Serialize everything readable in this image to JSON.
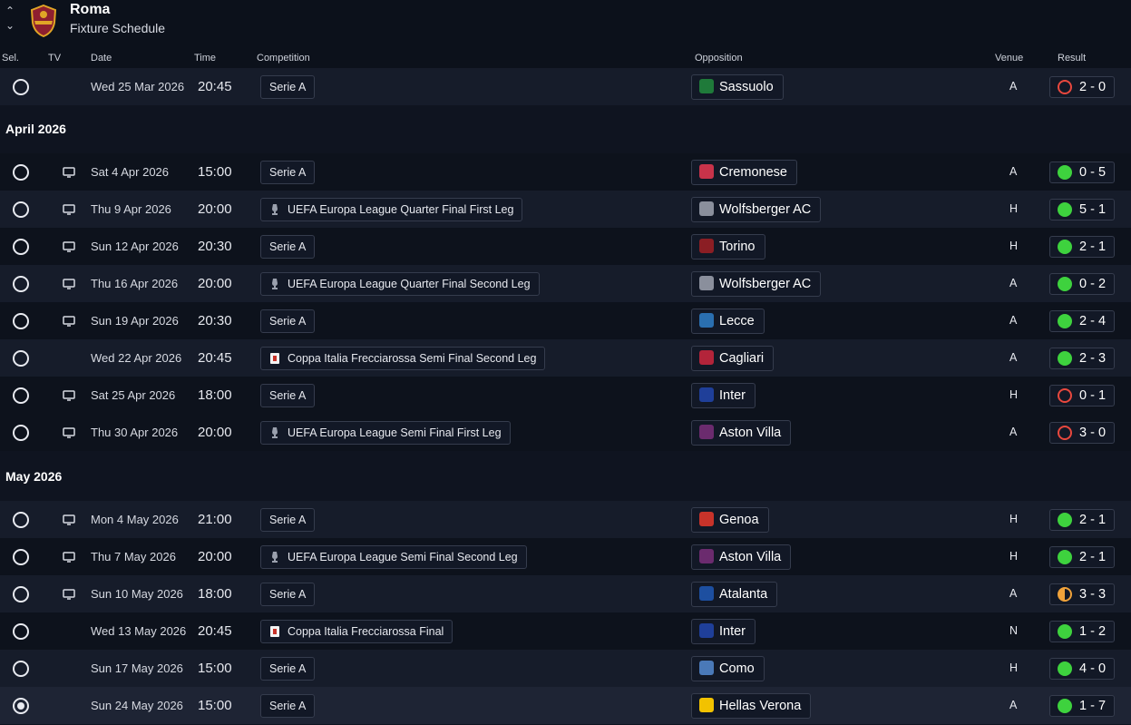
{
  "header": {
    "club_name": "Roma",
    "screen_title": "Fixture Schedule"
  },
  "columns": {
    "sel": "Sel.",
    "tv": "TV",
    "date": "Date",
    "time": "Time",
    "competition": "Competition",
    "opposition": "Opposition",
    "venue": "Venue",
    "result": "Result"
  },
  "months": [
    "April 2026",
    "May 2026"
  ],
  "fixtures": [
    {
      "date": "Wed 25 Mar 2026",
      "time": "20:45",
      "competition": "Serie A",
      "opposition": "Sassuolo",
      "venue": "A",
      "result": "2 - 0",
      "outcome": "loss",
      "tv": false,
      "comp_icon": "none",
      "badge_color": "#1f7a3a"
    },
    {
      "date": "Sat 4 Apr 2026",
      "time": "15:00",
      "competition": "Serie A",
      "opposition": "Cremonese",
      "venue": "A",
      "result": "0 - 5",
      "outcome": "win",
      "tv": true,
      "comp_icon": "none",
      "badge_color": "#c8334a"
    },
    {
      "date": "Thu 9 Apr 2026",
      "time": "20:00",
      "competition": "UEFA Europa League Quarter Final First Leg",
      "opposition": "Wolfsberger AC",
      "venue": "H",
      "result": "5 - 1",
      "outcome": "win",
      "tv": true,
      "comp_icon": "europa-league-trophy",
      "badge_color": "#8a8f9c"
    },
    {
      "date": "Sun 12 Apr 2026",
      "time": "20:30",
      "competition": "Serie A",
      "opposition": "Torino",
      "venue": "H",
      "result": "2 - 1",
      "outcome": "win",
      "tv": true,
      "comp_icon": "none",
      "badge_color": "#8b1e24"
    },
    {
      "date": "Thu 16 Apr 2026",
      "time": "20:00",
      "competition": "UEFA Europa League Quarter Final Second Leg",
      "opposition": "Wolfsberger AC",
      "venue": "A",
      "result": "0 - 2",
      "outcome": "win",
      "tv": true,
      "comp_icon": "europa-league-trophy",
      "badge_color": "#8a8f9c"
    },
    {
      "date": "Sun 19 Apr 2026",
      "time": "20:30",
      "competition": "Serie A",
      "opposition": "Lecce",
      "venue": "A",
      "result": "2 - 4",
      "outcome": "win",
      "tv": true,
      "comp_icon": "none",
      "badge_color": "#2a6fb0"
    },
    {
      "date": "Wed 22 Apr 2026",
      "time": "20:45",
      "competition": "Coppa Italia Frecciarossa Semi Final Second Leg",
      "opposition": "Cagliari",
      "venue": "A",
      "result": "2 - 3",
      "outcome": "win",
      "tv": false,
      "comp_icon": "coppa-italia-logo",
      "badge_color": "#b3243a"
    },
    {
      "date": "Sat 25 Apr 2026",
      "time": "18:00",
      "competition": "Serie A",
      "opposition": "Inter",
      "venue": "H",
      "result": "0 - 1",
      "outcome": "loss",
      "tv": true,
      "comp_icon": "none",
      "badge_color": "#1f3f99"
    },
    {
      "date": "Thu 30 Apr 2026",
      "time": "20:00",
      "competition": "UEFA Europa League Semi Final First Leg",
      "opposition": "Aston Villa",
      "venue": "A",
      "result": "3 - 0",
      "outcome": "loss",
      "tv": true,
      "comp_icon": "europa-league-trophy",
      "badge_color": "#6b2b6e"
    },
    {
      "date": "Mon 4 May 2026",
      "time": "21:00",
      "competition": "Serie A",
      "opposition": "Genoa",
      "venue": "H",
      "result": "2 - 1",
      "outcome": "win",
      "tv": true,
      "comp_icon": "none",
      "badge_color": "#c8332a"
    },
    {
      "date": "Thu 7 May 2026",
      "time": "20:00",
      "competition": "UEFA Europa League Semi Final Second Leg",
      "opposition": "Aston Villa",
      "venue": "H",
      "result": "2 - 1",
      "outcome": "win",
      "tv": true,
      "comp_icon": "europa-league-trophy",
      "badge_color": "#6b2b6e"
    },
    {
      "date": "Sun 10 May 2026",
      "time": "18:00",
      "competition": "Serie A",
      "opposition": "Atalanta",
      "venue": "A",
      "result": "3 - 3",
      "outcome": "draw",
      "tv": true,
      "comp_icon": "none",
      "badge_color": "#1d4fa0"
    },
    {
      "date": "Wed 13 May 2026",
      "time": "20:45",
      "competition": "Coppa Italia Frecciarossa Final",
      "opposition": "Inter",
      "venue": "N",
      "result": "1 - 2",
      "outcome": "win",
      "tv": false,
      "comp_icon": "coppa-italia-logo",
      "badge_color": "#1f3f99"
    },
    {
      "date": "Sun 17 May 2026",
      "time": "15:00",
      "competition": "Serie A",
      "opposition": "Como",
      "venue": "H",
      "result": "4 - 0",
      "outcome": "win",
      "tv": false,
      "comp_icon": "none",
      "badge_color": "#4a79b8"
    },
    {
      "date": "Sun 24 May 2026",
      "time": "15:00",
      "competition": "Serie A",
      "opposition": "Hellas Verona",
      "venue": "A",
      "result": "1 - 7",
      "outcome": "win",
      "tv": false,
      "comp_icon": "none",
      "badge_color": "#f2c200"
    }
  ],
  "selected_index": 14,
  "colors": {
    "win": "#3ed23e",
    "loss": "#e8483e",
    "draw": "#f0a23a"
  }
}
